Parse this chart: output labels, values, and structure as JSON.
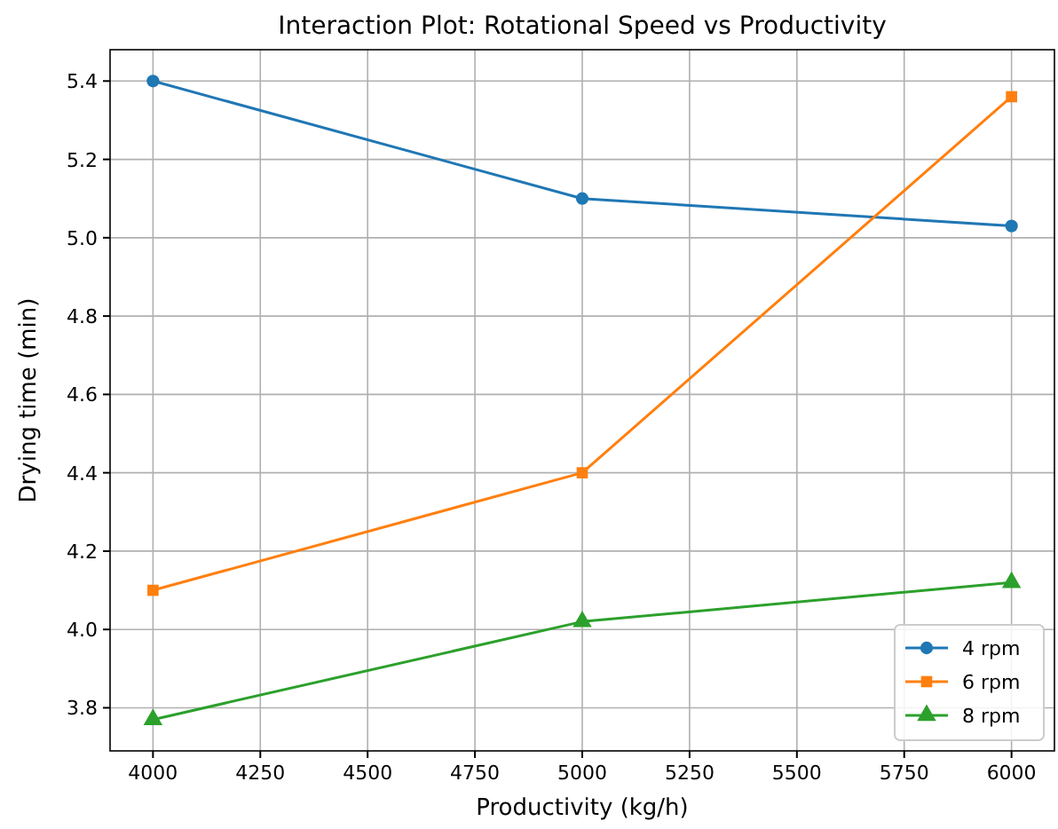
{
  "chart_data": {
    "type": "line",
    "title": "Interaction Plot: Rotational Speed vs Productivity",
    "xlabel": "Productivity (kg/h)",
    "ylabel": "Drying time (min)",
    "x": [
      4000,
      5000,
      6000
    ],
    "series": [
      {
        "name": "4 rpm",
        "color": "#1f77b4",
        "marker": "circle",
        "values": [
          5.4,
          5.1,
          5.03
        ]
      },
      {
        "name": "6 rpm",
        "color": "#ff7f0e",
        "marker": "square",
        "values": [
          4.1,
          4.4,
          5.36
        ]
      },
      {
        "name": "8 rpm",
        "color": "#2ca02c",
        "marker": "triangle",
        "values": [
          3.77,
          4.02,
          4.12
        ]
      }
    ],
    "xlim": [
      3900,
      6100
    ],
    "xticks": [
      4000,
      4250,
      4500,
      4750,
      5000,
      5250,
      5500,
      5750,
      6000
    ],
    "ylim": [
      3.69,
      5.48
    ],
    "yticks": [
      3.8,
      {
        "value": 4,
        "label": "4.0"
      },
      4.2,
      4.4,
      4.6,
      4.8,
      {
        "value": 5,
        "label": "5.0"
      },
      5.2,
      5.4
    ],
    "grid": true,
    "legend": "bottom right",
    "line_style": "solid"
  }
}
